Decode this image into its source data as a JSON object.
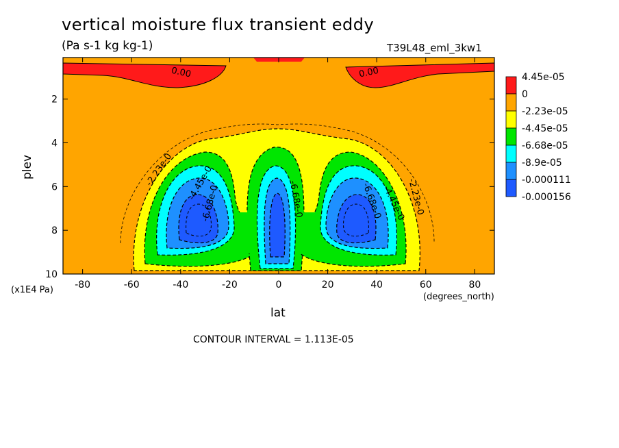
{
  "chart_data": {
    "type": "contour",
    "title": "vertical moisture flux transient eddy",
    "units": "(Pa s-1 kg kg-1)",
    "run_id": "T39L48_eml_3kw1",
    "xlabel": "lat",
    "xunits": "(degrees_north)",
    "ylabel": "plev",
    "yunits": "(x1E4 Pa)",
    "xlim": [
      -88,
      88
    ],
    "ylim": [
      10,
      0.1
    ],
    "y_inverted": true,
    "x_ticks": [
      -80,
      -60,
      -40,
      -20,
      0,
      20,
      40,
      60,
      80
    ],
    "y_ticks": [
      2,
      4,
      6,
      8,
      10
    ],
    "contour_interval": "CONTOUR INTERVAL = 1.113E-05",
    "legend": {
      "placement": "right",
      "levels": [
        {
          "label": "4.45e-05",
          "color": "#ff1a1a"
        },
        {
          "label": "0",
          "color": "#ffa500"
        },
        {
          "label": "-2.23e-05",
          "color": "#ffff00"
        },
        {
          "label": "-4.45e-05",
          "color": "#00e600"
        },
        {
          "label": "-6.68e-05",
          "color": "#00ffff"
        },
        {
          "label": "-8.9e-05",
          "color": "#1e90ff"
        },
        {
          "label": "-0.000111",
          "color": "#1e5aff"
        },
        {
          "label": "-0.000156",
          "color": null
        }
      ]
    },
    "contour_labels": [
      {
        "text": "0.00",
        "lat": -40,
        "plev": 0.9
      },
      {
        "text": "0.00",
        "lat": 37,
        "plev": 0.9
      },
      {
        "text": "-2.23e-0",
        "lat": -48,
        "plev": 5.3
      },
      {
        "text": "-4.45e-0",
        "lat": -31,
        "plev": 5.9
      },
      {
        "text": "-6.68e-0",
        "lat": -27,
        "plev": 6.8
      },
      {
        "text": "-6.68e-0",
        "lat": 6,
        "plev": 6.6
      },
      {
        "text": "-6.68e-0",
        "lat": 37,
        "plev": 6.7
      },
      {
        "text": "-4.45e-0",
        "lat": 46,
        "plev": 6.8
      },
      {
        "text": "-2.23e-0",
        "lat": 55,
        "plev": 6.5
      }
    ]
  }
}
